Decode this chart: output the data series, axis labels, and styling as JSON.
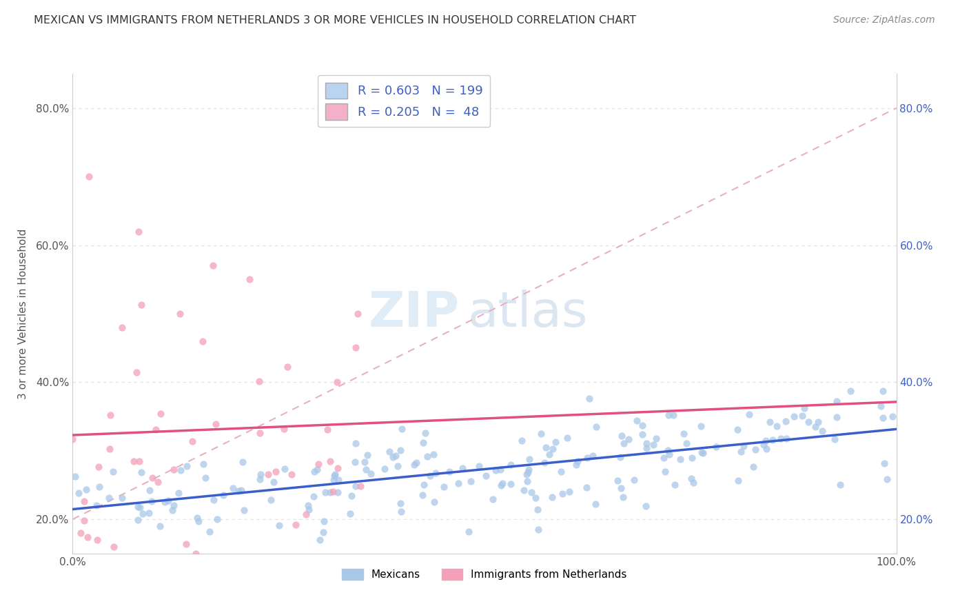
{
  "title": "MEXICAN VS IMMIGRANTS FROM NETHERLANDS 3 OR MORE VEHICLES IN HOUSEHOLD CORRELATION CHART",
  "source": "Source: ZipAtlas.com",
  "ylabel": "3 or more Vehicles in Household",
  "series1_color": "#a8c8e8",
  "series2_color": "#f4a0b8",
  "line1_color": "#3a5fcd",
  "line2_color": "#e05080",
  "line_dashed_color": "#e8b0c0",
  "watermark_zip": "ZIP",
  "watermark_atlas": "atlas",
  "xmin": 0,
  "xmax": 100,
  "ymin": 15,
  "ymax": 85,
  "yticks": [
    20,
    40,
    60,
    80
  ],
  "xticks": [
    0,
    100
  ],
  "legend_box_color1": "#b8d4f0",
  "legend_box_color2": "#f4b0c8",
  "legend_text_color": "#4060c0",
  "legend_r1": "R = 0.603",
  "legend_n1": "N = 199",
  "legend_r2": "R = 0.205",
  "legend_n2": "N =  48",
  "bottom_legend_color1": "#a8c8e8",
  "bottom_legend_color2": "#f4a0b8",
  "bottom_legend_label1": "Mexicans",
  "bottom_legend_label2": "Immigrants from Netherlands",
  "grid_color": "#e0e0e0",
  "spine_color": "#cccccc"
}
